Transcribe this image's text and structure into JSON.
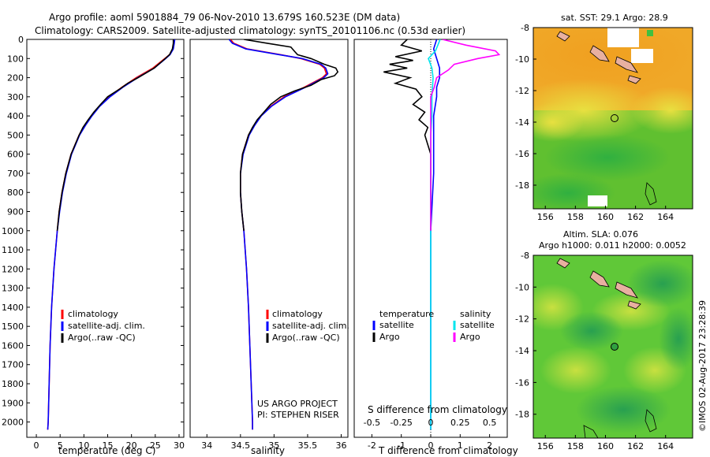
{
  "title": {
    "line1": "Argo profile: aoml 5901884_79 06-Nov-2010 13.679S 160.523E (DM data)",
    "line2": "Climatology: CARS2009. Satellite-adjusted climatology: synTS_20101106.nc (0.53d earlier)"
  },
  "colors": {
    "climatology": "#ff0000",
    "satellite": "#0000ff",
    "argo": "#000000",
    "salinity_satellite": "#00e5ee",
    "salinity_argo": "#ff00ff",
    "sst_warm": "#f0a020",
    "ocean_green": "#50c030",
    "land": "#e8b0a0"
  },
  "chart_data": [
    {
      "type": "line",
      "name": "temperature",
      "xlabel": "temperature (deg C)",
      "ylabel": "",
      "xlim": [
        -2,
        31
      ],
      "ylim": [
        2080,
        0
      ],
      "xticks": [
        "0",
        "5",
        "10",
        "15",
        "20",
        "25",
        "30"
      ],
      "xtick_values": [
        0,
        5,
        10,
        15,
        20,
        25,
        30
      ],
      "yticks": [
        "0",
        "100",
        "200",
        "300",
        "400",
        "500",
        "600",
        "700",
        "800",
        "900",
        "1000",
        "1100",
        "1200",
        "1300",
        "1400",
        "1500",
        "1600",
        "1700",
        "1800",
        "1900",
        "2000"
      ],
      "ytick_values": [
        0,
        100,
        200,
        300,
        400,
        500,
        600,
        700,
        800,
        900,
        1000,
        1100,
        1200,
        1300,
        1400,
        1500,
        1600,
        1700,
        1800,
        1900,
        2000
      ],
      "legend": [
        "climatology",
        "satellite-adj. clim.",
        "Argo(..raw -QC)"
      ],
      "series": [
        {
          "name": "climatology",
          "depth": [
            0,
            20,
            50,
            80,
            100,
            150,
            200,
            250,
            300,
            350,
            400,
            450,
            500,
            600,
            700,
            800,
            900,
            1000,
            1200,
            1400,
            1600,
            1800,
            2000,
            2040
          ],
          "values": [
            28.9,
            28.9,
            28.7,
            28.0,
            27.0,
            24.5,
            21.0,
            18.0,
            15.3,
            13.2,
            11.6,
            10.2,
            9.0,
            7.3,
            6.2,
            5.4,
            4.8,
            4.4,
            3.7,
            3.2,
            2.9,
            2.7,
            2.5,
            2.4
          ]
        },
        {
          "name": "satellite-adj. clim.",
          "depth": [
            0,
            20,
            50,
            80,
            100,
            150,
            200,
            250,
            300,
            350,
            400,
            450,
            500,
            600,
            700,
            800,
            900,
            1000,
            1200,
            1400,
            1600,
            1800,
            2000,
            2040
          ],
          "values": [
            29.1,
            29.0,
            28.8,
            28.1,
            27.2,
            24.8,
            21.3,
            18.2,
            15.5,
            13.3,
            11.7,
            10.3,
            9.1,
            7.4,
            6.3,
            5.5,
            4.9,
            4.4,
            3.7,
            3.2,
            2.9,
            2.7,
            2.5,
            2.4
          ]
        },
        {
          "name": "Argo(..raw -QC)",
          "depth": [
            0,
            20,
            50,
            80,
            100,
            150,
            200,
            230,
            260,
            300,
            340,
            380,
            420,
            460,
            500,
            600,
            700,
            800,
            900,
            1000
          ],
          "values": [
            28.8,
            28.8,
            28.6,
            28.0,
            27.1,
            24.8,
            21.4,
            19.2,
            17.5,
            15.0,
            13.5,
            12.1,
            10.9,
            9.8,
            9.0,
            7.3,
            6.2,
            5.4,
            4.8,
            4.4
          ]
        }
      ]
    },
    {
      "type": "line",
      "name": "salinity",
      "xlabel": "salinity",
      "xlim": [
        33.75,
        36.1
      ],
      "ylim": [
        2080,
        0
      ],
      "xticks": [
        "34",
        "34.5",
        "35",
        "35.5",
        "36"
      ],
      "xtick_values": [
        34,
        34.5,
        35,
        35.5,
        36
      ],
      "legend": [
        "climatology",
        "satellite-adj. clim.",
        "Argo(..raw -QC)"
      ],
      "annotation_lines": [
        "US ARGO PROJECT",
        "PI: STEPHEN RISER"
      ],
      "series": [
        {
          "name": "climatology",
          "depth": [
            0,
            20,
            50,
            80,
            100,
            130,
            150,
            180,
            200,
            250,
            300,
            350,
            400,
            450,
            500,
            600,
            700,
            800,
            900,
            1000,
            1200,
            1400,
            1600,
            1800,
            2000,
            2040
          ],
          "values": [
            34.35,
            34.4,
            34.6,
            35.1,
            35.4,
            35.68,
            35.75,
            35.78,
            35.72,
            35.45,
            35.15,
            34.95,
            34.8,
            34.7,
            34.62,
            34.53,
            34.5,
            34.5,
            34.52,
            34.55,
            34.59,
            34.62,
            34.64,
            34.66,
            34.68,
            34.68
          ]
        },
        {
          "name": "satellite-adj. clim.",
          "depth": [
            0,
            20,
            50,
            80,
            100,
            130,
            150,
            180,
            200,
            250,
            300,
            350,
            400,
            450,
            500,
            600,
            700,
            800,
            900,
            1000,
            1200,
            1400,
            1600,
            1800,
            2000,
            2040
          ],
          "values": [
            34.33,
            34.38,
            34.58,
            35.08,
            35.42,
            35.7,
            35.77,
            35.8,
            35.74,
            35.47,
            35.17,
            34.96,
            34.81,
            34.71,
            34.63,
            34.54,
            34.5,
            34.5,
            34.52,
            34.55,
            34.59,
            34.62,
            34.64,
            34.66,
            34.68,
            34.68
          ]
        },
        {
          "name": "Argo(..raw -QC)",
          "depth": [
            0,
            20,
            40,
            60,
            80,
            100,
            130,
            150,
            170,
            190,
            210,
            240,
            270,
            300,
            340,
            380,
            420,
            460,
            500,
            600,
            700,
            800,
            900,
            1000
          ],
          "values": [
            34.55,
            34.9,
            35.25,
            35.3,
            35.35,
            35.55,
            35.75,
            35.92,
            35.95,
            35.9,
            35.7,
            35.55,
            35.3,
            35.1,
            34.95,
            34.85,
            34.75,
            34.68,
            34.62,
            34.53,
            34.5,
            34.5,
            34.52,
            34.55
          ]
        }
      ]
    },
    {
      "type": "line",
      "name": "difference from climatology",
      "xlabel": "T difference from climatology",
      "xlabel_top": "S difference from climatology",
      "xlim": [
        -2.6,
        2.6
      ],
      "ylim": [
        2080,
        0
      ],
      "xticks": [
        "-2",
        "-1",
        "0",
        "1",
        "2"
      ],
      "xtick_values": [
        -2,
        -1,
        0,
        1,
        2
      ],
      "xticks_top": [
        "-0.5",
        "-0.25",
        "0",
        "0.25",
        "0.5"
      ],
      "legend_headers": [
        "temperature",
        "salinity"
      ],
      "legend": [
        "satellite",
        "Argo",
        "satellite",
        "Argo"
      ],
      "series": [
        {
          "name": "T satellite",
          "depth": [
            0,
            50,
            100,
            150,
            200,
            250,
            300,
            400,
            500,
            700,
            1000,
            1500,
            2000,
            2040
          ],
          "values": [
            0.2,
            0.1,
            0.2,
            0.3,
            0.3,
            0.2,
            0.2,
            0.1,
            0.1,
            0.1,
            0.0,
            0.0,
            0.0,
            0.0
          ]
        },
        {
          "name": "T Argo",
          "depth": [
            0,
            30,
            60,
            90,
            110,
            130,
            150,
            170,
            200,
            230,
            260,
            300,
            340,
            380,
            420,
            460,
            500,
            600,
            700,
            800,
            900,
            1000
          ],
          "values": [
            -0.8,
            -1.0,
            -0.3,
            -1.2,
            -0.6,
            -1.4,
            -0.8,
            -1.6,
            -0.7,
            -1.2,
            -0.5,
            -0.3,
            -0.6,
            -0.2,
            -0.4,
            -0.1,
            -0.2,
            0.0,
            0.0,
            0.0,
            0.0,
            0.0
          ]
        },
        {
          "name": "S satellite",
          "depth": [
            0,
            30,
            60,
            100,
            150,
            200,
            300,
            400,
            500,
            700,
            1000,
            1500,
            2000,
            2040
          ],
          "values": [
            0.08,
            0.06,
            0.04,
            -0.02,
            0.01,
            0.02,
            0.01,
            0.01,
            0.0,
            0.0,
            0.0,
            0.0,
            0.0,
            0.0
          ]
        },
        {
          "name": "S Argo",
          "depth": [
            0,
            30,
            60,
            80,
            100,
            130,
            160,
            200,
            250,
            300,
            350,
            400,
            500,
            700,
            1000
          ],
          "values": [
            0.1,
            0.3,
            0.55,
            0.58,
            0.4,
            0.2,
            0.15,
            0.05,
            0.03,
            0.0,
            0.0,
            0.0,
            0.0,
            0.0,
            0.0
          ]
        }
      ]
    },
    {
      "type": "heatmap",
      "name": "sst map",
      "title": "sat. SST: 29.1  Argo: 28.9",
      "xticks": [
        "156",
        "158",
        "160",
        "162",
        "164"
      ],
      "xtick_values": [
        156,
        158,
        160,
        162,
        164
      ],
      "yticks": [
        "-8",
        "-10",
        "-12",
        "-14",
        "-16",
        "-18"
      ],
      "ytick_values": [
        -8,
        -10,
        -12,
        -14,
        -16,
        -18
      ],
      "xlim": [
        155.2,
        165.8
      ],
      "ylim": [
        -8,
        -19.5
      ],
      "float_position": [
        160.5,
        -13.7
      ]
    },
    {
      "type": "heatmap",
      "name": "sla map",
      "title_lines": [
        "Altim. SLA: 0.076",
        "Argo h1000: 0.011 h2000: 0.0052"
      ],
      "xticks": [
        "156",
        "158",
        "160",
        "162",
        "164"
      ],
      "xtick_values": [
        156,
        158,
        160,
        162,
        164
      ],
      "yticks": [
        "-8",
        "-10",
        "-12",
        "-14",
        "-16",
        "-18"
      ],
      "ytick_values": [
        -8,
        -10,
        -12,
        -14,
        -16,
        -18
      ],
      "xlim": [
        155.2,
        165.8
      ],
      "ylim": [
        -8,
        -19.5
      ],
      "float_position": [
        160.5,
        -13.7
      ]
    }
  ],
  "footer": "©IMOS 02-Aug-2017 23:28:39"
}
